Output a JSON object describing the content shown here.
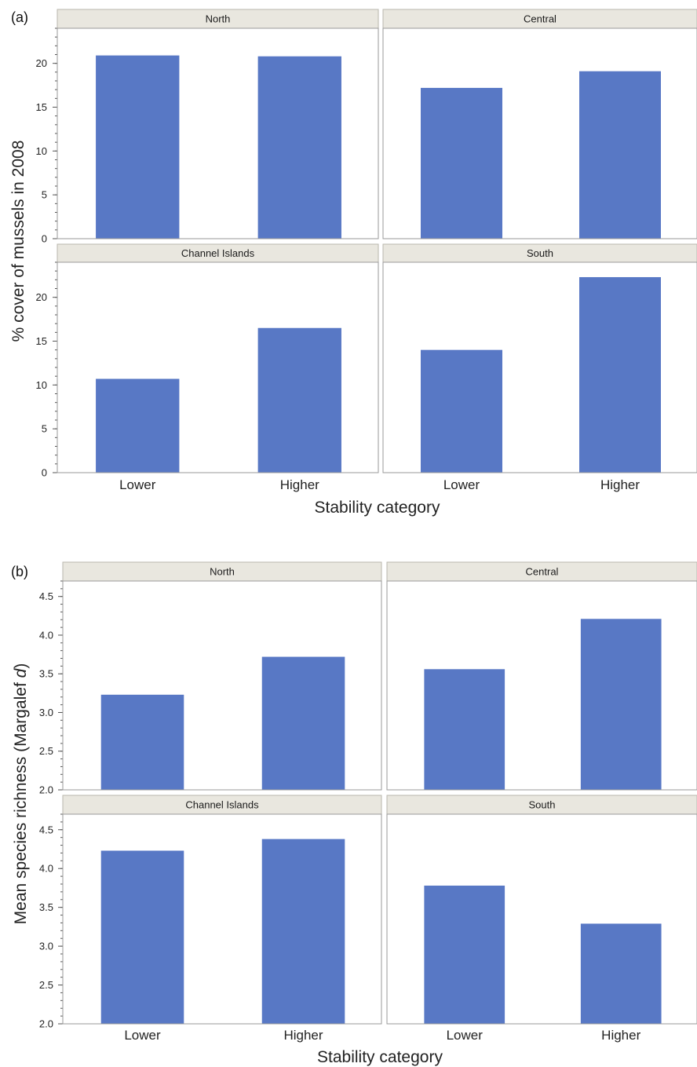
{
  "chart_data": [
    {
      "type": "bar",
      "panel_tag": "(a)",
      "facets": [
        "North",
        "Central",
        "Channel Islands",
        "South"
      ],
      "categories": [
        "Lower",
        "Higher"
      ],
      "series": [
        {
          "facet": "North",
          "values": [
            20.9,
            20.8
          ]
        },
        {
          "facet": "Central",
          "values": [
            17.2,
            19.1
          ]
        },
        {
          "facet": "Channel Islands",
          "values": [
            10.7,
            16.5
          ]
        },
        {
          "facet": "South",
          "values": [
            14.0,
            22.3
          ]
        }
      ],
      "ylabel": "% cover of mussels in 2008",
      "xlabel": "Stability category",
      "ylim_top_row": [
        0,
        24
      ],
      "ylim_bottom_row": [
        0,
        24
      ],
      "yticks": [
        "0",
        "5",
        "10",
        "15",
        "20"
      ],
      "bar_color": "#5878c5"
    },
    {
      "type": "bar",
      "panel_tag": "(b)",
      "facets": [
        "North",
        "Central",
        "Channel Islands",
        "South"
      ],
      "categories": [
        "Lower",
        "Higher"
      ],
      "series": [
        {
          "facet": "North",
          "values": [
            3.23,
            3.72
          ]
        },
        {
          "facet": "Central",
          "values": [
            3.56,
            4.21
          ]
        },
        {
          "facet": "Channel Islands",
          "values": [
            4.23,
            4.38
          ]
        },
        {
          "facet": "South",
          "values": [
            3.78,
            3.29
          ]
        }
      ],
      "ylabel_main": "Mean species richness (Margalef ",
      "ylabel_italic": "d",
      "ylabel_close": ")",
      "xlabel": "Stability category",
      "ylim": [
        2.0,
        4.7
      ],
      "yticks": [
        "2.0",
        "2.5",
        "3.0",
        "3.5",
        "4.0",
        "4.5"
      ],
      "bar_color": "#5878c5"
    }
  ]
}
